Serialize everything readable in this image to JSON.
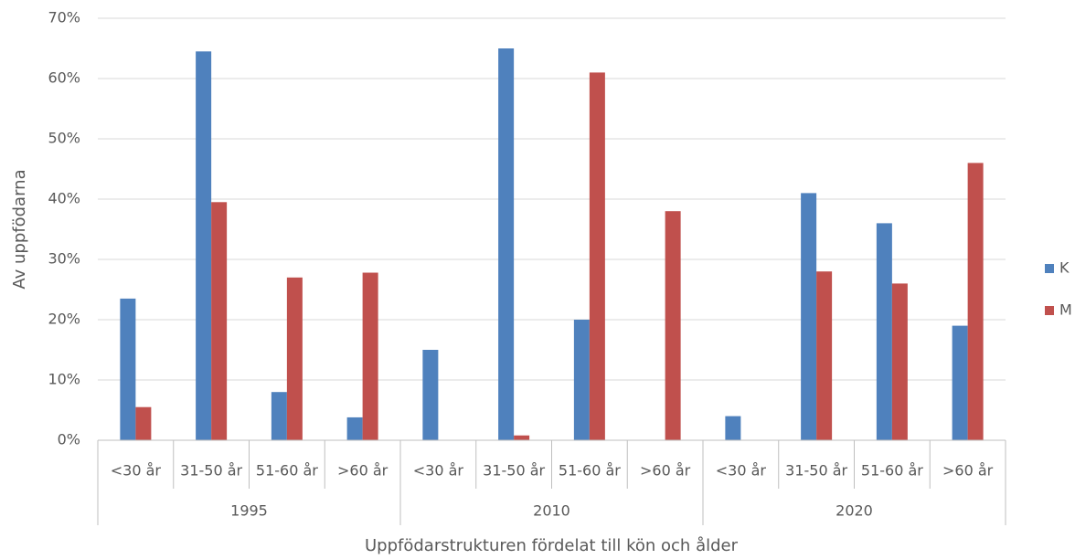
{
  "chart_data": {
    "type": "bar",
    "y_label": "Av uppfödarna",
    "x_label": "Uppfödarstrukturen fördelat till kön och ålder",
    "categories": [
      "<30 år",
      "31-50 år",
      "51-60 år",
      ">60 år",
      "<30 år",
      "31-50 år",
      "51-60 år",
      ">60 år",
      "<30 år",
      "31-50 år",
      "51-60 år",
      ">60 år"
    ],
    "groups": [
      "1995",
      "2010",
      "2020"
    ],
    "series": [
      {
        "name": "K",
        "color": "#4f81bd",
        "values": [
          23.5,
          64.5,
          8,
          3.8,
          15,
          65,
          20,
          0,
          4,
          41,
          36,
          19
        ]
      },
      {
        "name": "M",
        "color": "#c0504d",
        "values": [
          5.5,
          39.5,
          27,
          27.8,
          0,
          0.8,
          61,
          38,
          0,
          28,
          26,
          46
        ]
      }
    ],
    "ylim": [
      0,
      70
    ],
    "yticks": [
      {
        "value": 0,
        "label": "0%"
      },
      {
        "value": 10,
        "label": "10%"
      },
      {
        "value": 20,
        "label": "20%"
      },
      {
        "value": 30,
        "label": "30%"
      },
      {
        "value": 40,
        "label": "40%"
      },
      {
        "value": 50,
        "label": "50%"
      },
      {
        "value": 60,
        "label": "60%"
      },
      {
        "value": 70,
        "label": "70%"
      }
    ],
    "grid": true,
    "legend": "right"
  }
}
